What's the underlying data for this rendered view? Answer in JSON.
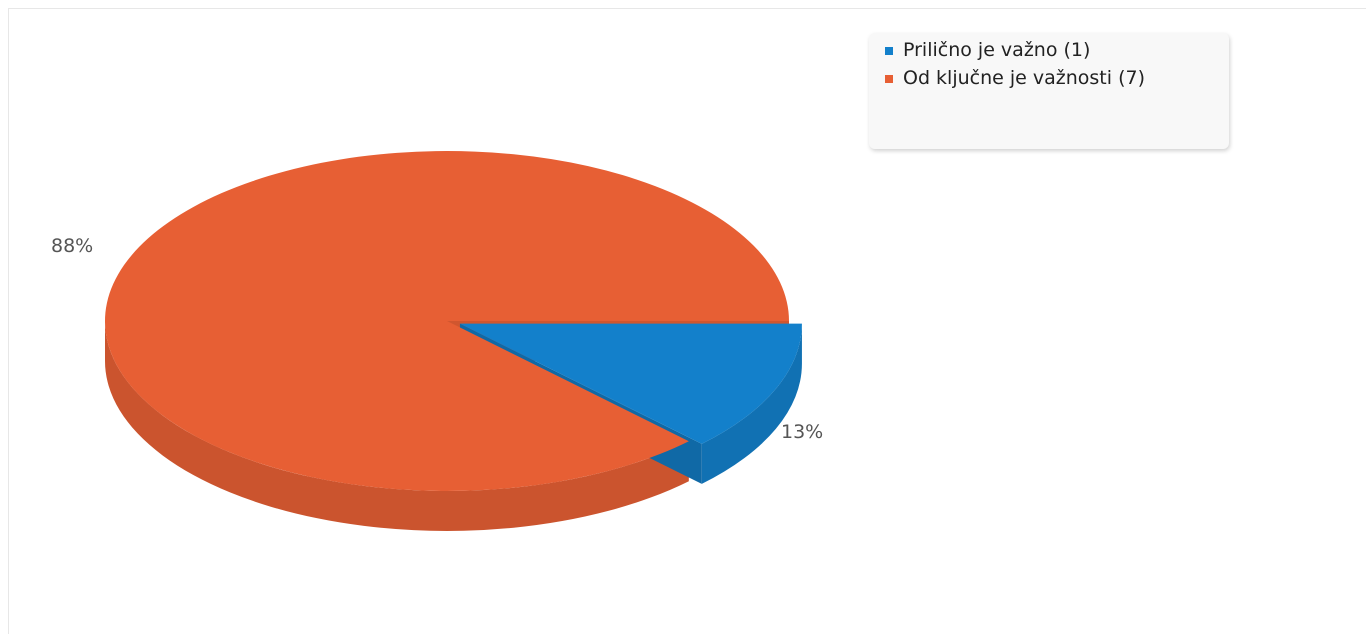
{
  "chart_data": {
    "type": "pie",
    "style": "3d",
    "title": "",
    "slices": [
      {
        "label": "Prilično je važno",
        "count": 1,
        "percent_label": "13%",
        "color": "#1380cb"
      },
      {
        "label": "Od ključne je važnosti",
        "count": 7,
        "percent_label": "88%",
        "color": "#e75f34"
      }
    ],
    "legend": {
      "position": "top-right",
      "items": [
        {
          "text": "Prilično je važno (1)",
          "color": "#1380cb"
        },
        {
          "text": "Od ključne je važnosti (7)",
          "color": "#e75f34"
        }
      ]
    },
    "data_labels": [
      "13%",
      "88%"
    ]
  }
}
